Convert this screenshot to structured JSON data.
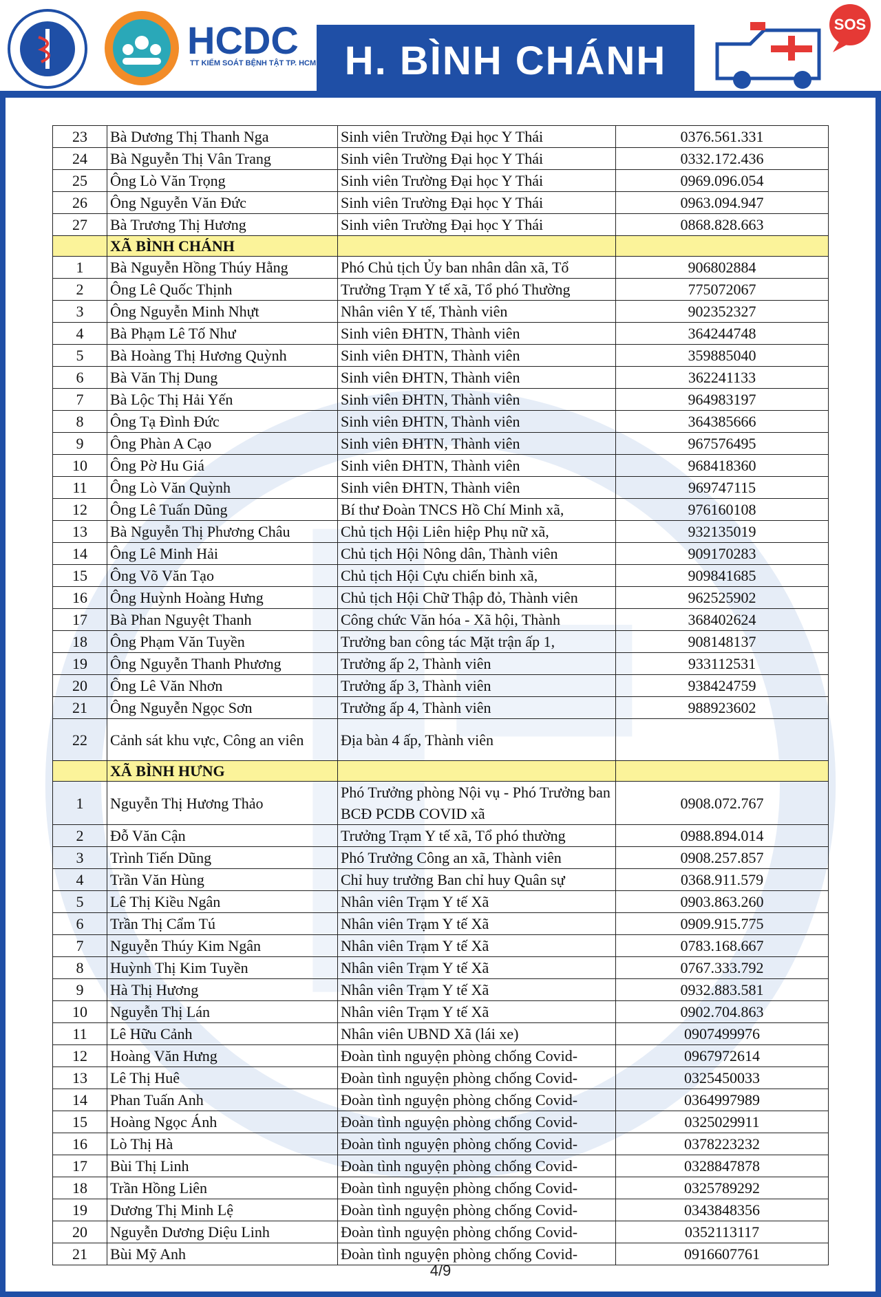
{
  "header": {
    "logo_title": "HCDC",
    "logo_subtitle": "TT KIỂM SOÁT BỆNH TẬT TP. HCM",
    "title": "H. BÌNH CHÁNH",
    "sos": "SOS"
  },
  "table": {
    "groups": [
      {
        "rows": [
          [
            23,
            "Bà Dương Thị Thanh Nga",
            "Sinh viên Trường Đại học Y Thái",
            "0376.561.331"
          ],
          [
            24,
            "Bà Nguyễn Thị Vân Trang",
            "Sinh viên Trường Đại học Y Thái",
            "0332.172.436"
          ],
          [
            25,
            "Ông Lò Văn Trọng",
            "Sinh viên Trường Đại học Y Thái",
            "0969.096.054"
          ],
          [
            26,
            "Ông Nguyễn Văn Đức",
            "Sinh viên Trường Đại học Y Thái",
            "0963.094.947"
          ],
          [
            27,
            "Bà Trương Thị Hương",
            "Sinh viên Trường Đại học Y Thái",
            "0868.828.663"
          ]
        ]
      },
      {
        "title": "XÃ BÌNH CHÁNH",
        "rows": [
          [
            1,
            "Bà Nguyễn Hồng Thúy Hằng",
            "Phó Chủ tịch Ủy ban nhân dân xã, Tổ",
            "906802884"
          ],
          [
            2,
            "Ông Lê Quốc Thịnh",
            "Trưởng Trạm Y tế xã, Tổ phó Thường",
            "775072067"
          ],
          [
            3,
            "Ông Nguyễn Minh Nhựt",
            "Nhân viên Y tế, Thành viên",
            "902352327"
          ],
          [
            4,
            "Bà Phạm Lê Tố Như",
            "Sinh viên ĐHTN, Thành viên",
            "364244748"
          ],
          [
            5,
            "Bà Hoàng Thị Hương Quỳnh",
            "Sinh viên ĐHTN, Thành viên",
            "359885040"
          ],
          [
            6,
            "Bà Văn Thị Dung",
            "Sinh viên ĐHTN, Thành viên",
            "362241133"
          ],
          [
            7,
            "Bà Lộc Thị Hải Yến",
            "Sinh viên ĐHTN, Thành viên",
            "964983197"
          ],
          [
            8,
            "Ông Tạ Đình Đức",
            "Sinh viên ĐHTN, Thành viên",
            "364385666"
          ],
          [
            9,
            "Ông Phàn A Cạo",
            "Sinh viên ĐHTN, Thành viên",
            "967576495"
          ],
          [
            10,
            "Ông Pờ Hu Giá",
            "Sinh viên ĐHTN, Thành viên",
            "968418360"
          ],
          [
            11,
            "Ông Lò Văn Quỳnh",
            "Sinh viên ĐHTN, Thành viên",
            "969747115"
          ],
          [
            12,
            "Ông Lê Tuấn Dũng",
            "Bí thư Đoàn TNCS Hồ Chí Minh xã,",
            "976160108"
          ],
          [
            13,
            "Bà Nguyễn Thị Phương Châu",
            "Chủ tịch Hội Liên hiệp Phụ nữ xã,",
            "932135019"
          ],
          [
            14,
            "Ông Lê Minh Hải",
            "Chủ tịch Hội Nông dân, Thành viên",
            "909170283"
          ],
          [
            15,
            "Ông Võ Văn Tạo",
            "Chủ tịch Hội Cựu chiến binh xã,",
            "909841685"
          ],
          [
            16,
            "Ông Huỳnh Hoàng Hưng",
            "Chủ tịch Hội Chữ Thập đỏ, Thành viên",
            "962525902"
          ],
          [
            17,
            "Bà Phan Nguyệt Thanh",
            "Công chức Văn hóa - Xã hội, Thành",
            "368402624"
          ],
          [
            18,
            "Ông Phạm Văn Tuyền",
            "Trưởng ban công tác Mặt trận ấp 1,",
            "908148137"
          ],
          [
            19,
            "Ông Nguyễn Thanh Phương",
            "Trưởng ấp 2, Thành viên",
            "933112531"
          ],
          [
            20,
            "Ông Lê Văn Nhơn",
            "Trưởng ấp 3, Thành viên",
            "938424759"
          ],
          [
            21,
            "Ông Nguyễn Ngọc Sơn",
            "Trưởng ấp 4, Thành viên",
            "988923602"
          ],
          [
            22,
            "Cảnh sát khu vực, Công an viên",
            "Địa bàn 4 ấp, Thành viên"
          ]
        ]
      },
      {
        "title": "XÃ BÌNH HƯNG",
        "rows": [
          [
            1,
            "Nguyễn Thị Hương Thảo",
            "Phó Trưởng phòng Nội vụ - Phó Trưởng ban BCĐ PCDB COVID xã",
            "0908.072.767"
          ],
          [
            2,
            "Đỗ Văn Cận",
            "Trưởng Trạm Y tế xã, Tổ phó thường",
            "0988.894.014"
          ],
          [
            3,
            "Trình Tiến Dũng",
            "Phó Trưởng Công an xã, Thành viên",
            "0908.257.857"
          ],
          [
            4,
            "Trần Văn Hùng",
            "Chỉ huy trưởng Ban chỉ huy Quân sự",
            "0368.911.579"
          ],
          [
            5,
            "Lê Thị Kiều Ngân",
            "Nhân viên Trạm Y tế Xã",
            "0903.863.260"
          ],
          [
            6,
            "Trần Thị Cẩm Tú",
            "Nhân viên Trạm Y tế Xã",
            "0909.915.775"
          ],
          [
            7,
            "Nguyễn Thúy Kim Ngân",
            "Nhân viên Trạm Y tế Xã",
            "0783.168.667"
          ],
          [
            8,
            "Huỳnh Thị Kim Tuyền",
            "Nhân viên Trạm Y tế Xã",
            "0767.333.792"
          ],
          [
            9,
            "Hà Thị Hương",
            "Nhân viên Trạm Y tế Xã",
            "0932.883.581"
          ],
          [
            10,
            "Nguyễn Thị Lán",
            "Nhân viên Trạm Y tế Xã",
            "0902.704.863"
          ],
          [
            11,
            "Lê Hữu Cảnh",
            "Nhân viên UBND Xã (lái xe)",
            "0907499976"
          ],
          [
            12,
            "Hoàng Văn Hưng",
            "Đoàn tình nguyện phòng chống Covid-",
            "0967972614"
          ],
          [
            13,
            "Lê Thị Huê",
            "Đoàn tình nguyện phòng chống Covid-",
            "0325450033"
          ],
          [
            14,
            "Phan Tuấn Anh",
            "Đoàn tình nguyện phòng chống Covid-",
            "0364997989"
          ],
          [
            15,
            "Hoàng Ngọc Ánh",
            "Đoàn tình nguyện phòng chống Covid-",
            "0325029911"
          ],
          [
            16,
            "Lò Thị Hà",
            "Đoàn tình nguyện phòng chống Covid-",
            "0378223232"
          ],
          [
            17,
            "Bùi Thị Linh",
            "Đoàn tình nguyện phòng chống Covid-",
            "0328847878"
          ],
          [
            18,
            "Trần Hồng Liên",
            "Đoàn tình nguyện phòng chống Covid-",
            "0325789292"
          ],
          [
            19,
            "Dương Thị Minh Lệ",
            "Đoàn tình nguyện phòng chống Covid-",
            "0343848356"
          ],
          [
            20,
            "Nguyễn Dương Diệu Linh",
            "Đoàn tình nguyện phòng chống Covid-",
            "0352113117"
          ],
          [
            21,
            "Bùi Mỹ Anh",
            "Đoàn tình nguyện phòng chống Covid-",
            "0916607761"
          ]
        ]
      }
    ]
  },
  "footer": {
    "page": "4/9"
  }
}
